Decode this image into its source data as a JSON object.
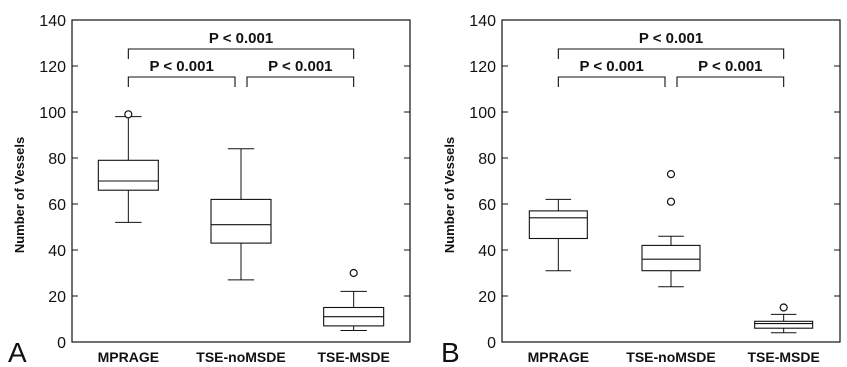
{
  "chart_data": [
    {
      "type": "box",
      "panel_label": "A",
      "ylabel": "Number of Vessels",
      "ylim": [
        0,
        140
      ],
      "yticks": [
        0,
        20,
        40,
        60,
        80,
        100,
        120,
        140
      ],
      "categories": [
        "MPRAGE",
        "TSE-noMSDE",
        "TSE-MSDE"
      ],
      "boxes": [
        {
          "whisker_low": 52,
          "q1": 66,
          "median": 70,
          "q3": 79,
          "whisker_high": 98,
          "outliers": [
            99
          ]
        },
        {
          "whisker_low": 27,
          "q1": 43,
          "median": 51,
          "q3": 62,
          "whisker_high": 84,
          "outliers": []
        },
        {
          "whisker_low": 5,
          "q1": 7,
          "median": 11,
          "q3": 15,
          "whisker_high": 22,
          "outliers": [
            30
          ]
        }
      ],
      "comparisons": [
        {
          "from": 0,
          "to": 2,
          "label": "P < 0.001"
        },
        {
          "from": 0,
          "to": 1,
          "label": "P < 0.001"
        },
        {
          "from": 1,
          "to": 2,
          "label": "P < 0.001"
        }
      ]
    },
    {
      "type": "box",
      "panel_label": "B",
      "ylabel": "Number of Vessels",
      "ylim": [
        0,
        140
      ],
      "yticks": [
        0,
        20,
        40,
        60,
        80,
        100,
        120,
        140
      ],
      "categories": [
        "MPRAGE",
        "TSE-noMSDE",
        "TSE-MSDE"
      ],
      "boxes": [
        {
          "whisker_low": 31,
          "q1": 45,
          "median": 54,
          "q3": 57,
          "whisker_high": 62,
          "outliers": []
        },
        {
          "whisker_low": 24,
          "q1": 31,
          "median": 36,
          "q3": 42,
          "whisker_high": 46,
          "outliers": [
            61,
            73
          ]
        },
        {
          "whisker_low": 4,
          "q1": 6,
          "median": 8,
          "q3": 9,
          "whisker_high": 12,
          "outliers": [
            15
          ]
        }
      ],
      "comparisons": [
        {
          "from": 0,
          "to": 2,
          "label": "P < 0.001"
        },
        {
          "from": 0,
          "to": 1,
          "label": "P < 0.001"
        },
        {
          "from": 1,
          "to": 2,
          "label": "P < 0.001"
        }
      ]
    }
  ]
}
